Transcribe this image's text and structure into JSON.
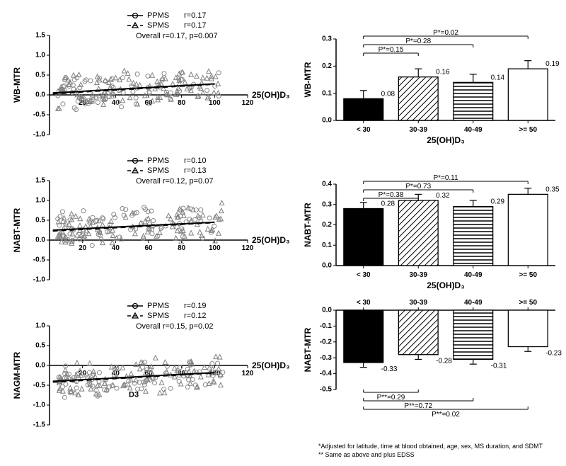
{
  "colors": {
    "bg": "#ffffff",
    "axis": "#000000",
    "text": "#000000",
    "gray_marker": "#808080",
    "gray_marker_fill": "#b0b0b0",
    "circle_marker": "#888888",
    "solid_bar": "#000000",
    "bar_stroke": "#000000"
  },
  "fonts": {
    "axis_label": 12,
    "tick": 10,
    "legend": 11,
    "anno": 10,
    "footnote": 9
  },
  "scatter_common": {
    "xlim": [
      0,
      120
    ],
    "xticks": [
      20,
      40,
      60,
      80,
      100,
      120
    ],
    "xaxis_label": "25(OH)D₃",
    "legend_items": [
      {
        "label": "PPMS",
        "marker": "circle-line"
      },
      {
        "label": "SPMS",
        "marker": "triangle-dash"
      }
    ],
    "n_points": 180
  },
  "scatter_panels": [
    {
      "ylabel": "WB-MTR",
      "ylim": [
        -1.0,
        1.5
      ],
      "yticks": [
        -1.0,
        -0.5,
        0.0,
        0.5,
        1.0,
        1.5
      ],
      "r_ppms": "r=0.17",
      "r_spms": "r=0.17",
      "overall": "Overall r=0.17, p=0.007",
      "fit_y0": 0.05,
      "fit_y1": 0.28,
      "seed": 1
    },
    {
      "ylabel": "NABT-MTR",
      "ylim": [
        -1.0,
        1.5
      ],
      "yticks": [
        -1.0,
        -0.5,
        0.0,
        0.5,
        1.0,
        1.5
      ],
      "r_ppms": "r=0.10",
      "r_spms": "r=0.13",
      "overall": "Overall r=0.12, p=0.07",
      "fit_y0": 0.25,
      "fit_y1": 0.45,
      "seed": 2
    },
    {
      "ylabel": "NAGM-MTR",
      "ylim": [
        -1.5,
        1.0
      ],
      "yticks": [
        -1.5,
        -1.0,
        -0.5,
        0.0,
        0.5,
        1.0
      ],
      "r_ppms": "r=0.19",
      "r_spms": "r=0.12",
      "overall": "Overall r=0.15, p=0.02",
      "fit_y0": -0.4,
      "fit_y1": -0.18,
      "extra_label": "D3",
      "seed": 3
    }
  ],
  "bar_common": {
    "categories": [
      "< 30",
      "30-39",
      "40-49",
      ">= 50"
    ],
    "xaxis_label": "25(OH)D₃",
    "patterns": [
      "solid",
      "diag",
      "horiz",
      "blank"
    ],
    "err": 0.03
  },
  "bar_panels": [
    {
      "ylabel": "WB-MTR",
      "ylim": [
        0.0,
        0.3
      ],
      "yticks": [
        0.0,
        0.1,
        0.2,
        0.3
      ],
      "values": [
        0.08,
        0.16,
        0.14,
        0.19
      ],
      "value_labels": [
        "0.08",
        "0.16",
        "0.14",
        "0.19"
      ],
      "comparisons": [
        {
          "from": 0,
          "to": 1,
          "label": "P*=0.15",
          "level": 1
        },
        {
          "from": 0,
          "to": 2,
          "label": "P*=0.28",
          "level": 2
        },
        {
          "from": 0,
          "to": 3,
          "label": "P*=0.02",
          "level": 3
        }
      ],
      "direction": "up"
    },
    {
      "ylabel": "NABT-MTR",
      "ylim": [
        0.0,
        0.4
      ],
      "yticks": [
        0.0,
        0.1,
        0.2,
        0.3,
        0.4
      ],
      "values": [
        0.28,
        0.32,
        0.29,
        0.35
      ],
      "value_labels": [
        "0.28",
        "0.32",
        "0.29",
        "0.35"
      ],
      "comparisons": [
        {
          "from": 0,
          "to": 1,
          "label": "P*=0.38",
          "level": 1
        },
        {
          "from": 0,
          "to": 2,
          "label": "P*=0.73",
          "level": 2
        },
        {
          "from": 0,
          "to": 3,
          "label": "P*=0.11",
          "level": 3
        }
      ],
      "direction": "up"
    },
    {
      "ylabel": "NABT-MTR",
      "ylim": [
        -0.5,
        0.0
      ],
      "yticks": [
        -0.5,
        -0.4,
        -0.3,
        -0.2,
        -0.1,
        0.0
      ],
      "values": [
        -0.33,
        -0.28,
        -0.31,
        -0.23
      ],
      "value_labels": [
        "-0.33",
        "-0.28",
        "-0.31",
        "-0.23"
      ],
      "comparisons": [
        {
          "from": 0,
          "to": 1,
          "label": "P**=0.29",
          "level": 1
        },
        {
          "from": 0,
          "to": 2,
          "label": "P**=0.72",
          "level": 2
        },
        {
          "from": 0,
          "to": 3,
          "label": "P**=0.02",
          "level": 3
        }
      ],
      "direction": "down"
    }
  ],
  "footnote": {
    "line1": "*Adjusted for latitude, time at blood obtained, age, sex, MS duration, and SDMT",
    "line2": "** Same as above and plus EDSS"
  }
}
